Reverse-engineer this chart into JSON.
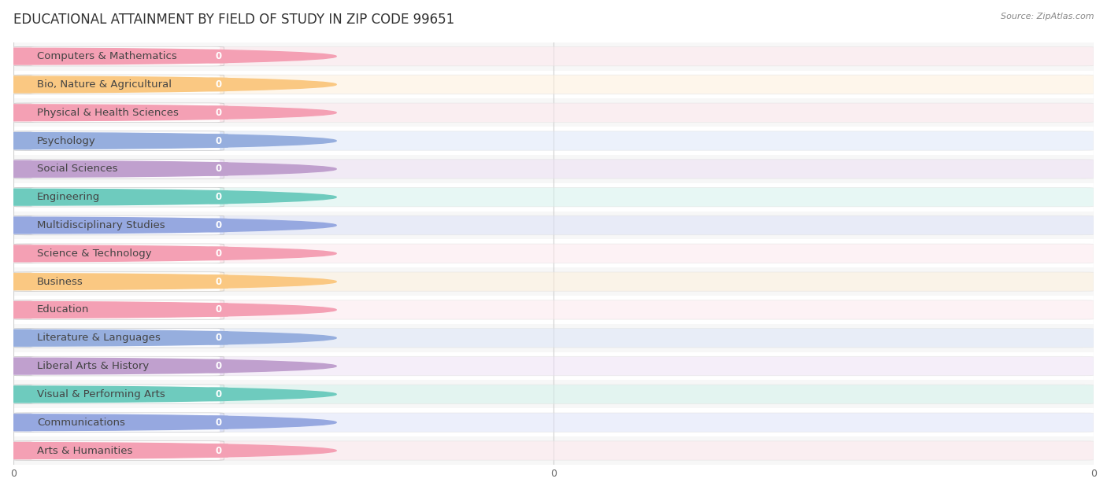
{
  "title": "EDUCATIONAL ATTAINMENT BY FIELD OF STUDY IN ZIP CODE 99651",
  "source": "Source: ZipAtlas.com",
  "categories": [
    "Computers & Mathematics",
    "Bio, Nature & Agricultural",
    "Physical & Health Sciences",
    "Psychology",
    "Social Sciences",
    "Engineering",
    "Multidisciplinary Studies",
    "Science & Technology",
    "Business",
    "Education",
    "Literature & Languages",
    "Liberal Arts & History",
    "Visual & Performing Arts",
    "Communications",
    "Arts & Humanities"
  ],
  "values": [
    0,
    0,
    0,
    0,
    0,
    0,
    0,
    0,
    0,
    0,
    0,
    0,
    0,
    0,
    0
  ],
  "bar_colors": [
    "#F4A0B4",
    "#FAC882",
    "#F4A0B4",
    "#96AEDE",
    "#C0A0CE",
    "#6ECBBE",
    "#96A8E0",
    "#F4A0B4",
    "#FAC882",
    "#F4A0B4",
    "#96AEDE",
    "#C0A0CE",
    "#6ECBBE",
    "#96A8E0",
    "#F4A0B4"
  ],
  "bar_colors_light": [
    "#FDE8ED",
    "#FEF0DC",
    "#FDE8ED",
    "#DDE6F8",
    "#EDE0F5",
    "#D4F2EC",
    "#DDE2F8",
    "#FDE8ED",
    "#FEF0DC",
    "#FDE8ED",
    "#DDE6F8",
    "#EDE0F5",
    "#D4F2EC",
    "#DDE2F8",
    "#FDE8ED"
  ],
  "background_color": "#ffffff",
  "xlim_max": 1.0,
  "title_fontsize": 12,
  "label_fontsize": 9.5,
  "val_fontsize": 8.5,
  "source_fontsize": 8
}
